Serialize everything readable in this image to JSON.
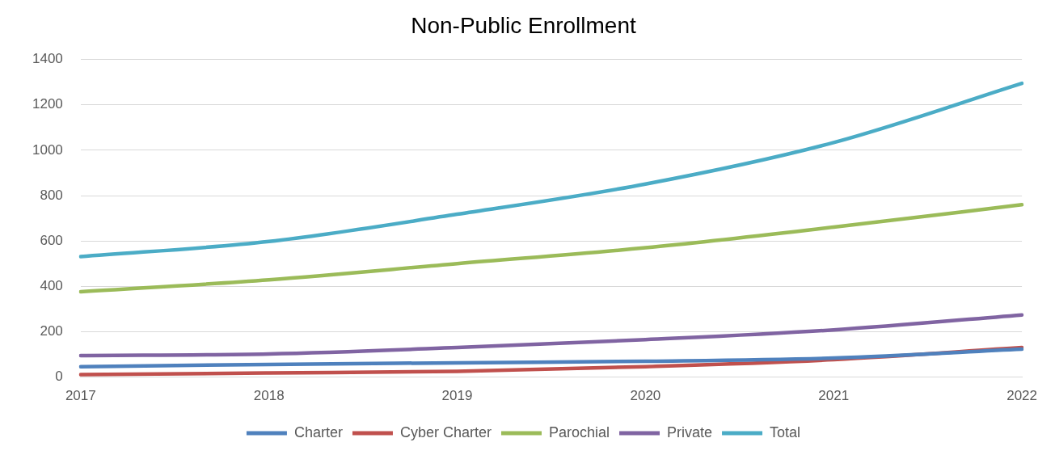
{
  "chart_data": {
    "type": "line",
    "title": "Non-Public Enrollment",
    "categories": [
      "2017",
      "2018",
      "2019",
      "2020",
      "2021",
      "2022"
    ],
    "series": [
      {
        "name": "Charter",
        "color": "#4f81bd",
        "values": [
          46,
          56,
          63,
          70,
          84,
          123
        ]
      },
      {
        "name": "Cyber Charter",
        "color": "#c0504d",
        "values": [
          11,
          18,
          25,
          46,
          77,
          130
        ]
      },
      {
        "name": "Parochial",
        "color": "#9bbb59",
        "values": [
          376,
          429,
          500,
          570,
          661,
          760
        ]
      },
      {
        "name": "Private",
        "color": "#8064a2",
        "values": [
          95,
          102,
          130,
          165,
          208,
          274
        ]
      },
      {
        "name": "Total",
        "color": "#4bacc6",
        "values": [
          531,
          598,
          718,
          851,
          1034,
          1295
        ]
      }
    ],
    "ylim": [
      0,
      1400
    ],
    "yticks": [
      0,
      200,
      400,
      600,
      800,
      1000,
      1200,
      1400
    ],
    "grid": "y",
    "legend": "bottom",
    "marker": "none",
    "line_style": "solid"
  }
}
